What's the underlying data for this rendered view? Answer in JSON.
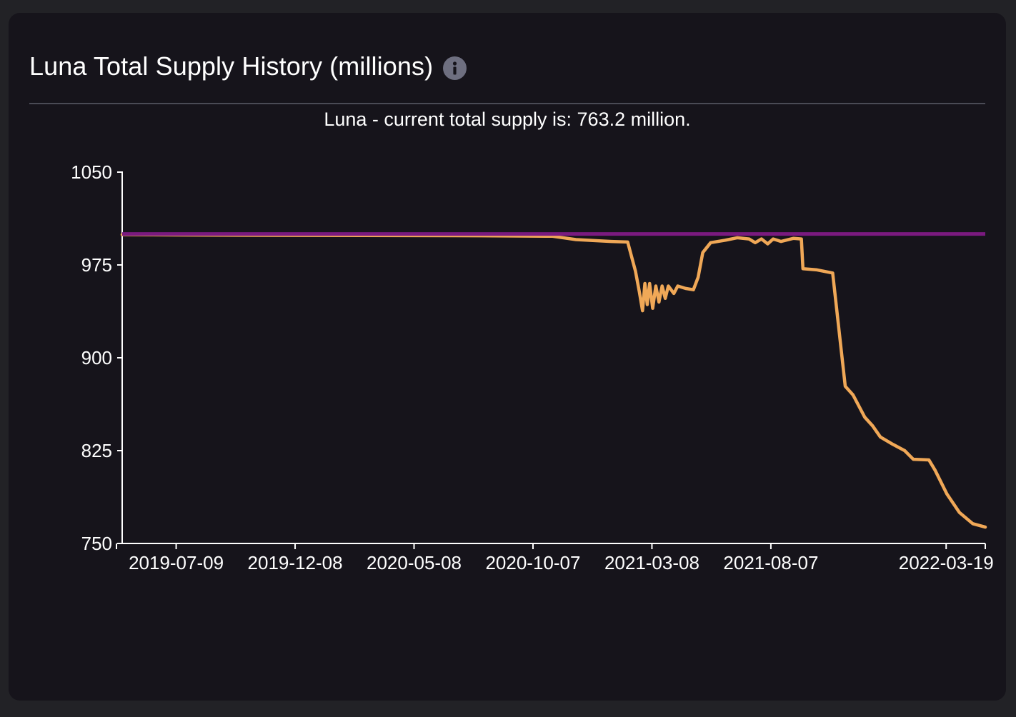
{
  "header": {
    "title": "Luna Total Supply History (millions)",
    "info_icon": "info-icon"
  },
  "colors": {
    "background": "#222226",
    "card": "#16141b",
    "supply_line": "#f0a857",
    "reference_line": "#7a1a7f",
    "text": "#ffffff"
  },
  "chart_data": {
    "type": "line",
    "title": "Luna - current total supply is: 763.2 million.",
    "xlabel": "",
    "ylabel": "",
    "ylim": [
      750,
      1050
    ],
    "xlim": [
      "2019-05-01",
      "2022-05-08"
    ],
    "grid": false,
    "legend": "none",
    "y_ticks": [
      "750",
      "825",
      "900",
      "975",
      "1050"
    ],
    "x_ticks": [
      "2019-07-09",
      "2019-12-08",
      "2020-05-08",
      "2020-10-07",
      "2021-03-08",
      "2021-08-07",
      "2022-03-19"
    ],
    "reference_line": {
      "value": 1000
    },
    "series": [
      {
        "color": "#f0a857",
        "points": [
          [
            "2019-05-01",
            999.5
          ],
          [
            "2019-10-01",
            999.0
          ],
          [
            "2020-03-01",
            998.8
          ],
          [
            "2020-08-01",
            998.6
          ],
          [
            "2020-11-01",
            998.2
          ],
          [
            "2020-12-01",
            995.5
          ],
          [
            "2021-01-15",
            994.0
          ],
          [
            "2021-02-05",
            993.5
          ],
          [
            "2021-02-15",
            970.0
          ],
          [
            "2021-02-20",
            953.0
          ],
          [
            "2021-02-24",
            938.0
          ],
          [
            "2021-02-27",
            960.0
          ],
          [
            "2021-03-02",
            943.0
          ],
          [
            "2021-03-05",
            960.0
          ],
          [
            "2021-03-09",
            940.0
          ],
          [
            "2021-03-13",
            958.0
          ],
          [
            "2021-03-17",
            945.0
          ],
          [
            "2021-03-21",
            958.0
          ],
          [
            "2021-03-25",
            948.0
          ],
          [
            "2021-03-29",
            958.0
          ],
          [
            "2021-04-05",
            952.0
          ],
          [
            "2021-04-10",
            958.0
          ],
          [
            "2021-04-20",
            956.0
          ],
          [
            "2021-04-30",
            955.0
          ],
          [
            "2021-05-06",
            965.0
          ],
          [
            "2021-05-12",
            985.0
          ],
          [
            "2021-05-22",
            993.0
          ],
          [
            "2021-06-10",
            995.0
          ],
          [
            "2021-06-25",
            997.0
          ],
          [
            "2021-07-10",
            996.0
          ],
          [
            "2021-07-18",
            993.0
          ],
          [
            "2021-07-26",
            996.0
          ],
          [
            "2021-08-03",
            992.0
          ],
          [
            "2021-08-10",
            996.0
          ],
          [
            "2021-08-20",
            994.0
          ],
          [
            "2021-09-05",
            996.5
          ],
          [
            "2021-09-15",
            996.0
          ],
          [
            "2021-09-17",
            972.0
          ],
          [
            "2021-10-05",
            971.0
          ],
          [
            "2021-10-25",
            968.5
          ],
          [
            "2021-11-10",
            877.0
          ],
          [
            "2021-11-20",
            870.0
          ],
          [
            "2021-12-05",
            852.0
          ],
          [
            "2021-12-15",
            845.0
          ],
          [
            "2021-12-25",
            836.0
          ],
          [
            "2022-01-10",
            830.0
          ],
          [
            "2022-01-25",
            825.0
          ],
          [
            "2022-02-05",
            818.0
          ],
          [
            "2022-02-25",
            817.5
          ],
          [
            "2022-03-05",
            809.0
          ],
          [
            "2022-03-20",
            790.0
          ],
          [
            "2022-04-05",
            775.0
          ],
          [
            "2022-04-22",
            766.0
          ],
          [
            "2022-05-08",
            763.2
          ]
        ]
      }
    ]
  }
}
